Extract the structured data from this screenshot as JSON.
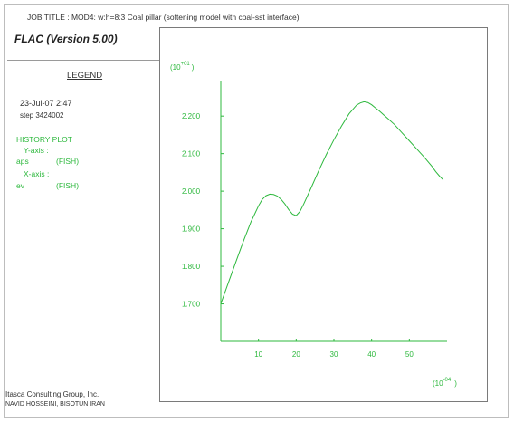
{
  "header": {
    "job_title": "JOB TITLE :  MOD4: w:h=8:3 Coal pillar (softening model with coal-sst interface)",
    "app_title": "FLAC (Version 5.00)"
  },
  "legend": {
    "title": "LEGEND",
    "date": "23-Jul-07   2:47",
    "step": "step  3424002",
    "history_plot": "HISTORY PLOT",
    "y_axis_label": "Y-axis :",
    "y_var": "aps",
    "y_type": "(FISH)",
    "x_axis_label": "X-axis :",
    "x_var": "ev",
    "x_type": "(FISH)"
  },
  "footer": {
    "company": "Itasca Consulting Group, Inc.",
    "author": "NAVID HOSSEINI, BISOTUN IRAN"
  },
  "colors": {
    "series": "#2db83d",
    "frame": "#7a7a7a",
    "text": "#333333"
  },
  "chart_data": {
    "type": "line",
    "y_multiplier_label": "(10",
    "y_multiplier_exp": "+01",
    "x_multiplier_label": "(10",
    "x_multiplier_exp": "-04",
    "close_paren": ")",
    "xlim": [
      0,
      60
    ],
    "ylim": [
      1.6,
      2.28
    ],
    "x_ticks": [
      10,
      20,
      30,
      40,
      50
    ],
    "x_tick_labels": [
      "10",
      "20",
      "30",
      "40",
      "50"
    ],
    "y_ticks": [
      1.7,
      1.8,
      1.9,
      2.0,
      2.1,
      2.2
    ],
    "y_tick_labels": [
      "1.700",
      "1.800",
      "1.900",
      "2.000",
      "2.100",
      "2.200"
    ],
    "series": [
      {
        "x": [
          0,
          2,
          4,
          6,
          8,
          10,
          11,
          12,
          13,
          14,
          15,
          16,
          17,
          18,
          19,
          20,
          21,
          22,
          24,
          26,
          28,
          30,
          32,
          34,
          36,
          37,
          38,
          39,
          40,
          41,
          42,
          44,
          46,
          48,
          50,
          52,
          54,
          56,
          57,
          58,
          59
        ],
        "y": [
          1.7,
          1.756,
          1.812,
          1.867,
          1.918,
          1.961,
          1.978,
          1.988,
          1.992,
          1.991,
          1.987,
          1.978,
          1.966,
          1.951,
          1.939,
          1.935,
          1.946,
          1.966,
          2.01,
          2.055,
          2.098,
          2.137,
          2.173,
          2.206,
          2.229,
          2.235,
          2.238,
          2.236,
          2.23,
          2.222,
          2.214,
          2.196,
          2.178,
          2.156,
          2.134,
          2.112,
          2.09,
          2.066,
          2.052,
          2.04,
          2.03
        ]
      }
    ]
  }
}
